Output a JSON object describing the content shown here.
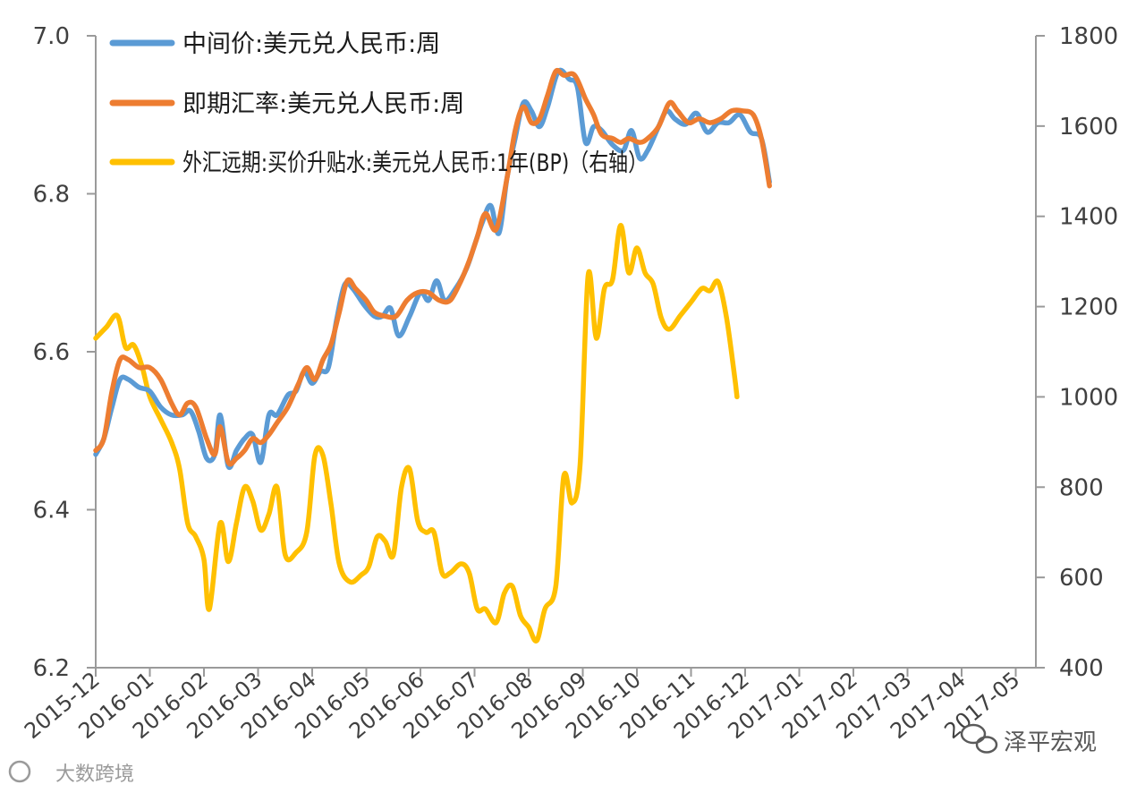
{
  "chart_data": {
    "type": "line",
    "x": [
      "2015-12",
      "2016-01",
      "2016-02",
      "2016-03",
      "2016-04",
      "2016-05",
      "2016-06",
      "2016-07",
      "2016-08",
      "2016-09",
      "2016-10",
      "2016-11",
      "2016-12",
      "2017-01",
      "2017-02",
      "2017-03",
      "2017-04",
      "2017-05"
    ],
    "y_left": {
      "min": 6.2,
      "max": 7.0,
      "ticks": [
        "6.2",
        "6.4",
        "6.6",
        "6.8",
        "7.0"
      ]
    },
    "y_right": {
      "min": 400,
      "max": 1800,
      "ticks": [
        "400",
        "600",
        "800",
        "1000",
        "1200",
        "1400",
        "1600",
        "1800"
      ]
    },
    "series": [
      {
        "name": "中间价:美元兑人民币:周",
        "axis": "left",
        "color": "#5B9BD5",
        "points": [
          [
            0,
            6.47
          ],
          [
            0.15,
            6.49
          ],
          [
            0.3,
            6.53
          ],
          [
            0.45,
            6.565
          ],
          [
            0.6,
            6.565
          ],
          [
            0.8,
            6.555
          ],
          [
            1.0,
            6.55
          ],
          [
            1.2,
            6.53
          ],
          [
            1.4,
            6.52
          ],
          [
            1.6,
            6.52
          ],
          [
            1.75,
            6.525
          ],
          [
            1.9,
            6.5
          ],
          [
            2.05,
            6.465
          ],
          [
            2.2,
            6.47
          ],
          [
            2.3,
            6.52
          ],
          [
            2.45,
            6.455
          ],
          [
            2.6,
            6.475
          ],
          [
            2.75,
            6.49
          ],
          [
            2.9,
            6.495
          ],
          [
            3.05,
            6.46
          ],
          [
            3.2,
            6.52
          ],
          [
            3.35,
            6.52
          ],
          [
            3.55,
            6.545
          ],
          [
            3.7,
            6.55
          ],
          [
            3.85,
            6.575
          ],
          [
            4.0,
            6.56
          ],
          [
            4.15,
            6.575
          ],
          [
            4.3,
            6.58
          ],
          [
            4.45,
            6.64
          ],
          [
            4.6,
            6.685
          ],
          [
            4.75,
            6.68
          ],
          [
            4.95,
            6.66
          ],
          [
            5.15,
            6.645
          ],
          [
            5.3,
            6.645
          ],
          [
            5.45,
            6.655
          ],
          [
            5.6,
            6.62
          ],
          [
            5.8,
            6.645
          ],
          [
            6.0,
            6.675
          ],
          [
            6.15,
            6.665
          ],
          [
            6.3,
            6.69
          ],
          [
            6.45,
            6.665
          ],
          [
            6.65,
            6.68
          ],
          [
            6.85,
            6.705
          ],
          [
            7.0,
            6.735
          ],
          [
            7.15,
            6.765
          ],
          [
            7.3,
            6.785
          ],
          [
            7.45,
            6.75
          ],
          [
            7.6,
            6.82
          ],
          [
            7.75,
            6.87
          ],
          [
            7.9,
            6.915
          ],
          [
            8.05,
            6.905
          ],
          [
            8.2,
            6.885
          ],
          [
            8.35,
            6.91
          ],
          [
            8.55,
            6.955
          ],
          [
            8.75,
            6.945
          ],
          [
            8.9,
            6.935
          ],
          [
            9.05,
            6.865
          ],
          [
            9.2,
            6.885
          ],
          [
            9.35,
            6.88
          ],
          [
            9.55,
            6.862
          ],
          [
            9.75,
            6.855
          ],
          [
            9.9,
            6.88
          ],
          [
            10.05,
            6.845
          ],
          [
            10.2,
            6.855
          ],
          [
            10.4,
            6.885
          ],
          [
            10.55,
            6.905
          ],
          [
            10.7,
            6.895
          ],
          [
            10.9,
            6.888
          ],
          [
            11.1,
            6.902
          ],
          [
            11.3,
            6.878
          ],
          [
            11.5,
            6.89
          ],
          [
            11.7,
            6.89
          ],
          [
            11.9,
            6.9
          ],
          [
            12.1,
            6.878
          ],
          [
            12.3,
            6.87
          ],
          [
            12.45,
            6.815
          ]
        ]
      },
      {
        "name": "即期汇率:美元兑人民币:周",
        "axis": "left",
        "color": "#ED7D31",
        "points": [
          [
            0,
            6.475
          ],
          [
            0.15,
            6.49
          ],
          [
            0.3,
            6.55
          ],
          [
            0.45,
            6.59
          ],
          [
            0.6,
            6.59
          ],
          [
            0.8,
            6.58
          ],
          [
            1.0,
            6.58
          ],
          [
            1.2,
            6.565
          ],
          [
            1.4,
            6.535
          ],
          [
            1.55,
            6.52
          ],
          [
            1.7,
            6.535
          ],
          [
            1.85,
            6.53
          ],
          [
            2.05,
            6.49
          ],
          [
            2.2,
            6.47
          ],
          [
            2.3,
            6.505
          ],
          [
            2.45,
            6.46
          ],
          [
            2.6,
            6.465
          ],
          [
            2.75,
            6.475
          ],
          [
            2.9,
            6.49
          ],
          [
            3.05,
            6.485
          ],
          [
            3.2,
            6.495
          ],
          [
            3.35,
            6.51
          ],
          [
            3.55,
            6.53
          ],
          [
            3.75,
            6.56
          ],
          [
            3.9,
            6.58
          ],
          [
            4.05,
            6.565
          ],
          [
            4.2,
            6.59
          ],
          [
            4.35,
            6.61
          ],
          [
            4.5,
            6.65
          ],
          [
            4.65,
            6.69
          ],
          [
            4.8,
            6.68
          ],
          [
            5.0,
            6.665
          ],
          [
            5.15,
            6.65
          ],
          [
            5.35,
            6.645
          ],
          [
            5.55,
            6.645
          ],
          [
            5.75,
            6.665
          ],
          [
            5.95,
            6.675
          ],
          [
            6.15,
            6.675
          ],
          [
            6.35,
            6.665
          ],
          [
            6.55,
            6.665
          ],
          [
            6.75,
            6.69
          ],
          [
            6.9,
            6.715
          ],
          [
            7.05,
            6.745
          ],
          [
            7.2,
            6.775
          ],
          [
            7.4,
            6.755
          ],
          [
            7.6,
            6.82
          ],
          [
            7.75,
            6.88
          ],
          [
            7.9,
            6.91
          ],
          [
            8.05,
            6.89
          ],
          [
            8.2,
            6.895
          ],
          [
            8.35,
            6.925
          ],
          [
            8.5,
            6.955
          ],
          [
            8.65,
            6.95
          ],
          [
            8.85,
            6.95
          ],
          [
            9.05,
            6.92
          ],
          [
            9.2,
            6.9
          ],
          [
            9.35,
            6.875
          ],
          [
            9.55,
            6.87
          ],
          [
            9.7,
            6.865
          ],
          [
            9.85,
            6.87
          ],
          [
            10.05,
            6.865
          ],
          [
            10.2,
            6.87
          ],
          [
            10.4,
            6.885
          ],
          [
            10.6,
            6.915
          ],
          [
            10.75,
            6.905
          ],
          [
            10.95,
            6.89
          ],
          [
            11.15,
            6.895
          ],
          [
            11.35,
            6.89
          ],
          [
            11.55,
            6.895
          ],
          [
            11.75,
            6.905
          ],
          [
            11.95,
            6.905
          ],
          [
            12.15,
            6.9
          ],
          [
            12.3,
            6.87
          ],
          [
            12.45,
            6.81
          ]
        ]
      },
      {
        "name": "外汇远期:买价升贴水:美元兑人民币:1年(BP)（右轴）",
        "axis": "right",
        "color": "#FFC000",
        "points": [
          [
            0,
            1130
          ],
          [
            0.2,
            1155
          ],
          [
            0.4,
            1180
          ],
          [
            0.55,
            1110
          ],
          [
            0.7,
            1115
          ],
          [
            0.85,
            1070
          ],
          [
            1.0,
            1000
          ],
          [
            1.2,
            950
          ],
          [
            1.4,
            900
          ],
          [
            1.55,
            840
          ],
          [
            1.7,
            720
          ],
          [
            1.85,
            690
          ],
          [
            2.0,
            640
          ],
          [
            2.1,
            530
          ],
          [
            2.3,
            720
          ],
          [
            2.45,
            635
          ],
          [
            2.6,
            720
          ],
          [
            2.75,
            800
          ],
          [
            2.9,
            770
          ],
          [
            3.05,
            705
          ],
          [
            3.2,
            740
          ],
          [
            3.35,
            800
          ],
          [
            3.5,
            650
          ],
          [
            3.7,
            655
          ],
          [
            3.9,
            700
          ],
          [
            4.05,
            870
          ],
          [
            4.2,
            870
          ],
          [
            4.35,
            760
          ],
          [
            4.5,
            630
          ],
          [
            4.7,
            590
          ],
          [
            4.9,
            605
          ],
          [
            5.05,
            625
          ],
          [
            5.2,
            690
          ],
          [
            5.35,
            680
          ],
          [
            5.5,
            650
          ],
          [
            5.65,
            800
          ],
          [
            5.8,
            840
          ],
          [
            5.95,
            725
          ],
          [
            6.1,
            700
          ],
          [
            6.25,
            700
          ],
          [
            6.4,
            610
          ],
          [
            6.55,
            610
          ],
          [
            6.75,
            630
          ],
          [
            6.9,
            610
          ],
          [
            7.05,
            530
          ],
          [
            7.2,
            530
          ],
          [
            7.4,
            500
          ],
          [
            7.55,
            565
          ],
          [
            7.7,
            580
          ],
          [
            7.85,
            515
          ],
          [
            8.0,
            490
          ],
          [
            8.15,
            460
          ],
          [
            8.3,
            530
          ],
          [
            8.5,
            580
          ],
          [
            8.65,
            825
          ],
          [
            8.8,
            765
          ],
          [
            8.95,
            850
          ],
          [
            9.1,
            1270
          ],
          [
            9.25,
            1130
          ],
          [
            9.4,
            1240
          ],
          [
            9.55,
            1260
          ],
          [
            9.7,
            1380
          ],
          [
            9.85,
            1275
          ],
          [
            10.0,
            1330
          ],
          [
            10.15,
            1275
          ],
          [
            10.3,
            1250
          ],
          [
            10.45,
            1175
          ],
          [
            10.6,
            1150
          ],
          [
            10.8,
            1180
          ],
          [
            11.0,
            1210
          ],
          [
            11.2,
            1240
          ],
          [
            11.35,
            1235
          ],
          [
            11.5,
            1255
          ],
          [
            11.65,
            1180
          ],
          [
            11.8,
            1050
          ],
          [
            11.85,
            1000
          ]
        ]
      }
    ],
    "legend": {
      "placement": "top-left"
    },
    "grid": false
  },
  "legend": {
    "items": [
      {
        "lines": [
          "中间价:美元兑人民币:周"
        ]
      },
      {
        "lines": [
          "即期汇率:美元兑人民币:周"
        ]
      },
      {
        "lines": [
          "外汇远期:买价升贴水:美元兑人民币:1年(BP)（右轴）"
        ]
      }
    ]
  },
  "watermarks": {
    "right": "泽平宏观",
    "left": "大数跨境"
  }
}
